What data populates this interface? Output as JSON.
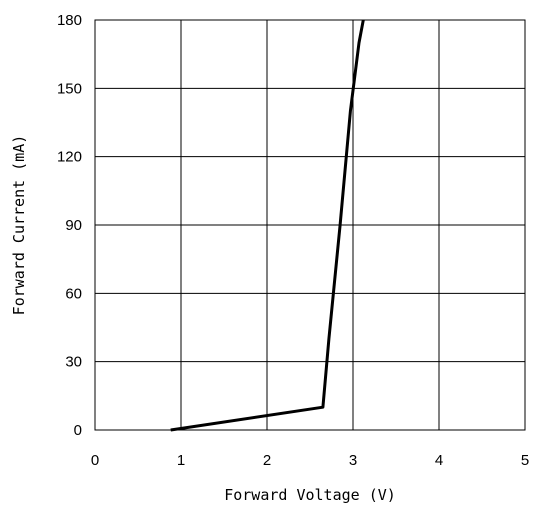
{
  "chart_data": {
    "type": "line",
    "title": "",
    "xlabel": "Forward Voltage (V)",
    "ylabel": "Forward Current (mA)",
    "xlim": [
      0,
      5
    ],
    "ylim": [
      0,
      180
    ],
    "x_ticks": [
      "0",
      "1",
      "2",
      "3",
      "4",
      "5"
    ],
    "y_ticks": [
      "0",
      "30",
      "60",
      "90",
      "120",
      "150",
      "180"
    ],
    "grid": true,
    "legend": "none",
    "series": [
      {
        "color": "#000000",
        "x": [
          0.88,
          2.65,
          2.72,
          2.85,
          2.97,
          3.07,
          3.12
        ],
        "y": [
          0,
          10,
          40,
          90,
          140,
          170,
          180
        ]
      }
    ]
  }
}
